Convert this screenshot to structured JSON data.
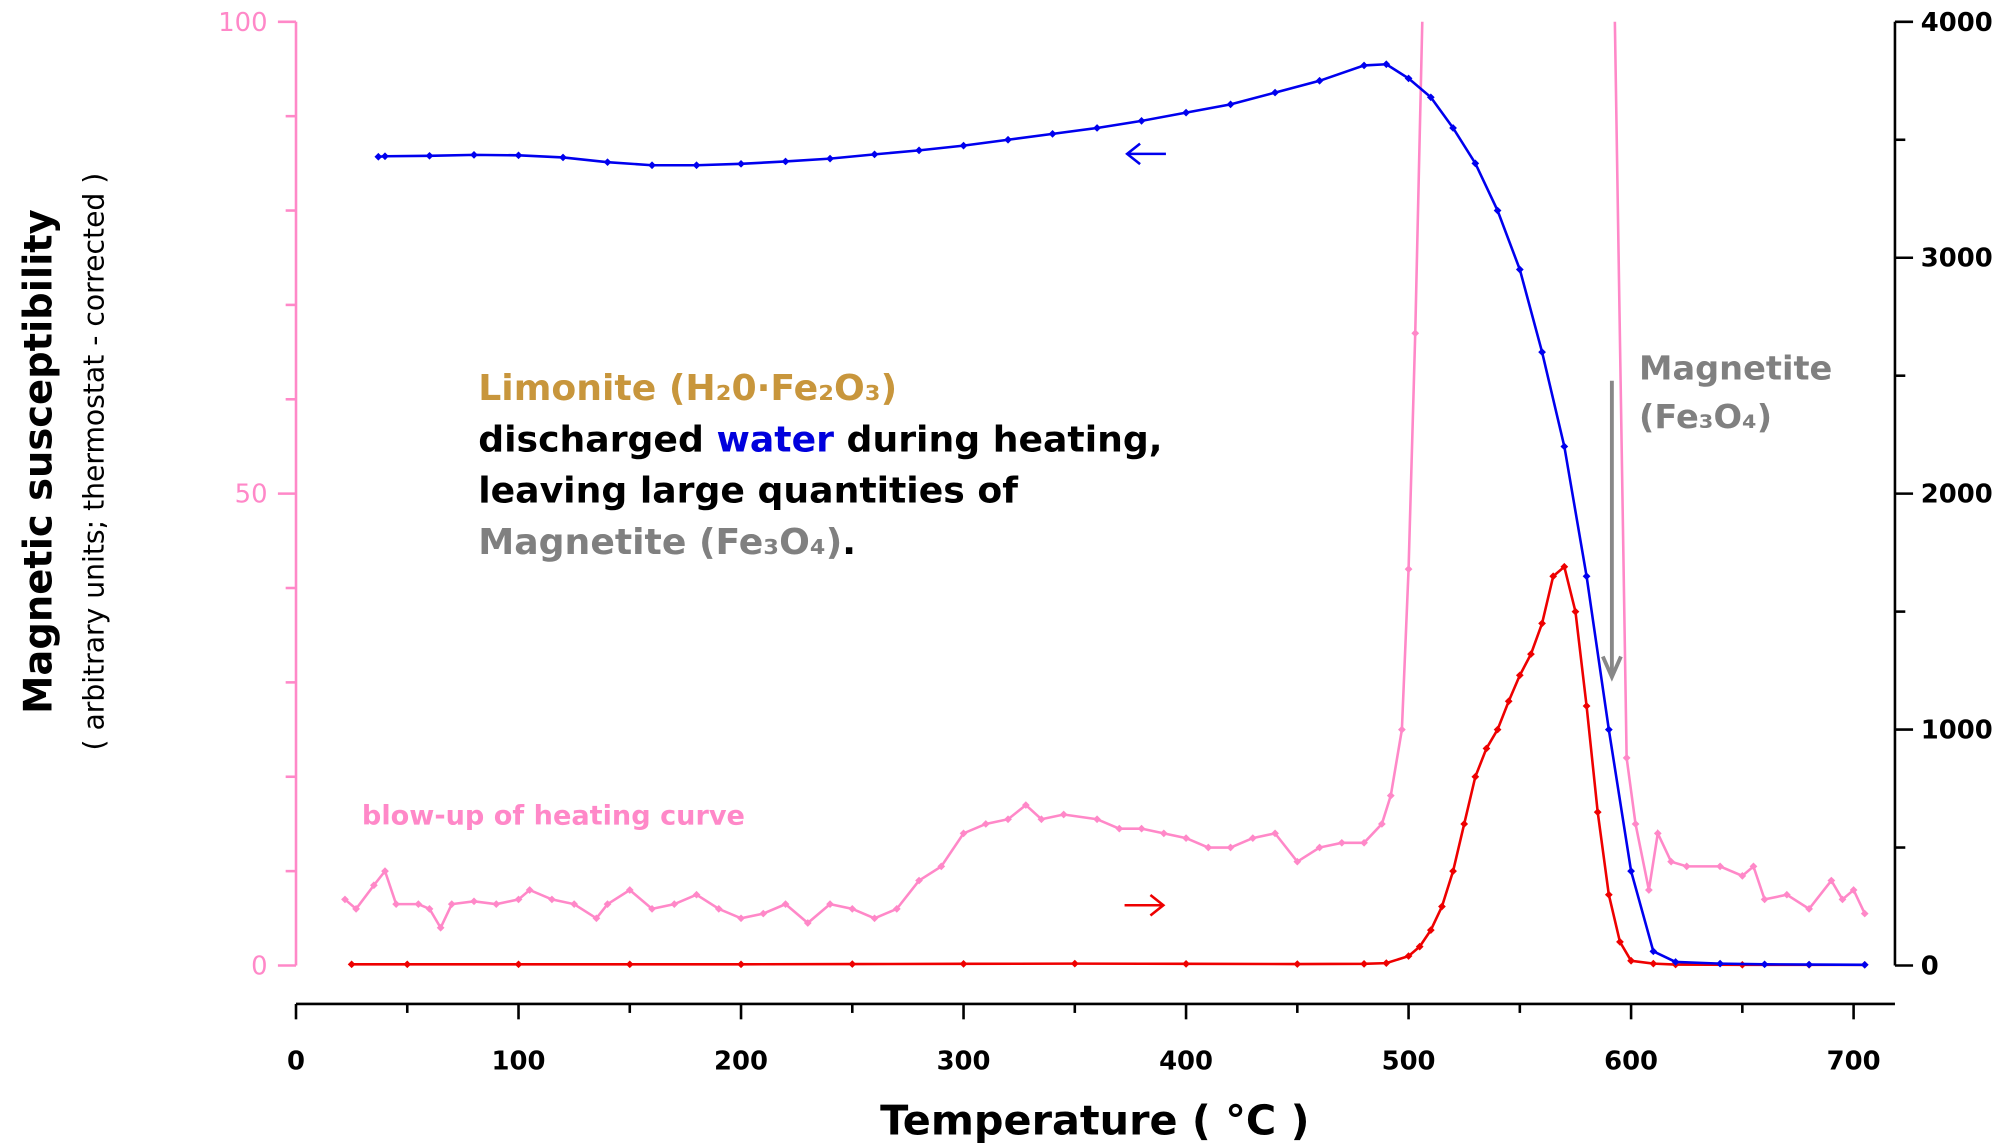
{
  "chart_data": {
    "type": "line",
    "xlabel": "Temperature ( °C )",
    "ylabel": "Magnetic susceptibility",
    "ylabel_note": "( arbitrary units; thermostat - corrected )",
    "xlim": [
      0,
      720
    ],
    "xticks": [
      0,
      100,
      200,
      300,
      400,
      500,
      600,
      700
    ],
    "xminorticks": [
      50,
      150,
      250,
      350,
      450,
      550,
      650
    ],
    "ylim": [
      0,
      100
    ],
    "yticks": [
      0,
      50,
      100
    ],
    "yminorticks": [
      10,
      20,
      30,
      40,
      60,
      70,
      80,
      90
    ],
    "y_color": "#ff88c8",
    "y2lim": [
      0,
      4000
    ],
    "y2ticks": [
      0,
      1000,
      2000,
      3000,
      4000
    ],
    "y2minorticks": [
      500,
      1500,
      2500,
      3500
    ],
    "series": [
      {
        "color": "#ff88c8",
        "axis": "y",
        "x": [
          22,
          27,
          35,
          40,
          45,
          55,
          60,
          65,
          70,
          80,
          90,
          100,
          105,
          115,
          125,
          135,
          140,
          150,
          160,
          170,
          180,
          190,
          200,
          210,
          220,
          230,
          240,
          250,
          260,
          270,
          280,
          290,
          300,
          310,
          320,
          328,
          335,
          345,
          360,
          370,
          380,
          390,
          400,
          410,
          420,
          430,
          440,
          450,
          460,
          470,
          480,
          488,
          492,
          497,
          500,
          503,
          510,
          590,
          598,
          602,
          608,
          612,
          618,
          625,
          640,
          650,
          655,
          660,
          670,
          680,
          690,
          695,
          700,
          705
        ],
        "values": [
          7,
          6,
          8.5,
          10,
          6.5,
          6.5,
          6,
          4,
          6.5,
          6.8,
          6.5,
          7,
          8,
          7,
          6.5,
          5,
          6.5,
          8,
          6,
          6.5,
          7.5,
          6,
          5,
          5.5,
          6.5,
          4.5,
          6.5,
          6,
          5,
          6,
          9,
          10.5,
          14,
          15,
          15.5,
          17,
          15.5,
          16,
          15.5,
          14.5,
          14.5,
          14,
          13.5,
          12.5,
          12.5,
          13.5,
          14,
          11,
          12.5,
          13,
          13,
          15,
          18,
          25,
          42,
          67,
          140,
          140,
          22,
          15,
          8,
          14,
          11,
          10.5,
          10.5,
          9.5,
          10.5,
          7,
          7.5,
          6,
          9,
          7,
          8,
          5.5
        ]
      },
      {
        "color": "#ee0000",
        "axis": "y2",
        "x": [
          25,
          50,
          100,
          150,
          200,
          250,
          300,
          350,
          400,
          450,
          480,
          490,
          500,
          505,
          510,
          515,
          520,
          525,
          530,
          535,
          540,
          545,
          550,
          555,
          560,
          565,
          570,
          575,
          580,
          585,
          590,
          595,
          600,
          610,
          620,
          650,
          680,
          705
        ],
        "values": [
          5,
          5,
          5,
          5,
          5,
          6,
          7,
          8,
          7,
          6,
          7,
          10,
          40,
          80,
          150,
          250,
          400,
          600,
          800,
          920,
          1000,
          1120,
          1230,
          1320,
          1450,
          1650,
          1690,
          1500,
          1100,
          650,
          300,
          100,
          20,
          8,
          4,
          3,
          3,
          3
        ]
      },
      {
        "color": "#0000ee",
        "axis": "y2",
        "x": [
          37,
          40,
          60,
          80,
          100,
          120,
          140,
          160,
          180,
          200,
          220,
          240,
          260,
          280,
          300,
          320,
          340,
          360,
          380,
          400,
          420,
          440,
          460,
          480,
          490,
          500,
          510,
          520,
          530,
          540,
          550,
          560,
          570,
          580,
          590,
          600,
          610,
          620,
          640,
          660,
          680,
          705
        ],
        "values": [
          3428,
          3430,
          3432,
          3436,
          3434,
          3425,
          3405,
          3392,
          3392,
          3398,
          3408,
          3420,
          3438,
          3455,
          3475,
          3500,
          3525,
          3550,
          3580,
          3615,
          3650,
          3700,
          3750,
          3815,
          3820,
          3760,
          3680,
          3550,
          3400,
          3200,
          2950,
          2600,
          2200,
          1650,
          1000,
          400,
          60,
          15,
          8,
          5,
          4,
          3
        ]
      }
    ],
    "annotations": {
      "limonite": [
        [
          {
            "text": "Limonite (H₂0·Fe₂O₃)",
            "color": "#c8963c"
          }
        ],
        [
          {
            "text": "discharged ",
            "color": "#000000"
          },
          {
            "text": "water",
            "color": "#0000dd"
          },
          {
            "text": " during heating,",
            "color": "#000000"
          }
        ],
        [
          {
            "text": "leaving large quantities of",
            "color": "#000000"
          }
        ],
        [
          {
            "text": "Magnetite (Fe₃O₄)",
            "color": "#808080"
          },
          {
            "text": ".",
            "color": "#000000"
          }
        ]
      ],
      "magnetite": [
        "Magnetite",
        "(Fe₃O₄)"
      ],
      "blowup": "blow-up of heating curve"
    }
  }
}
